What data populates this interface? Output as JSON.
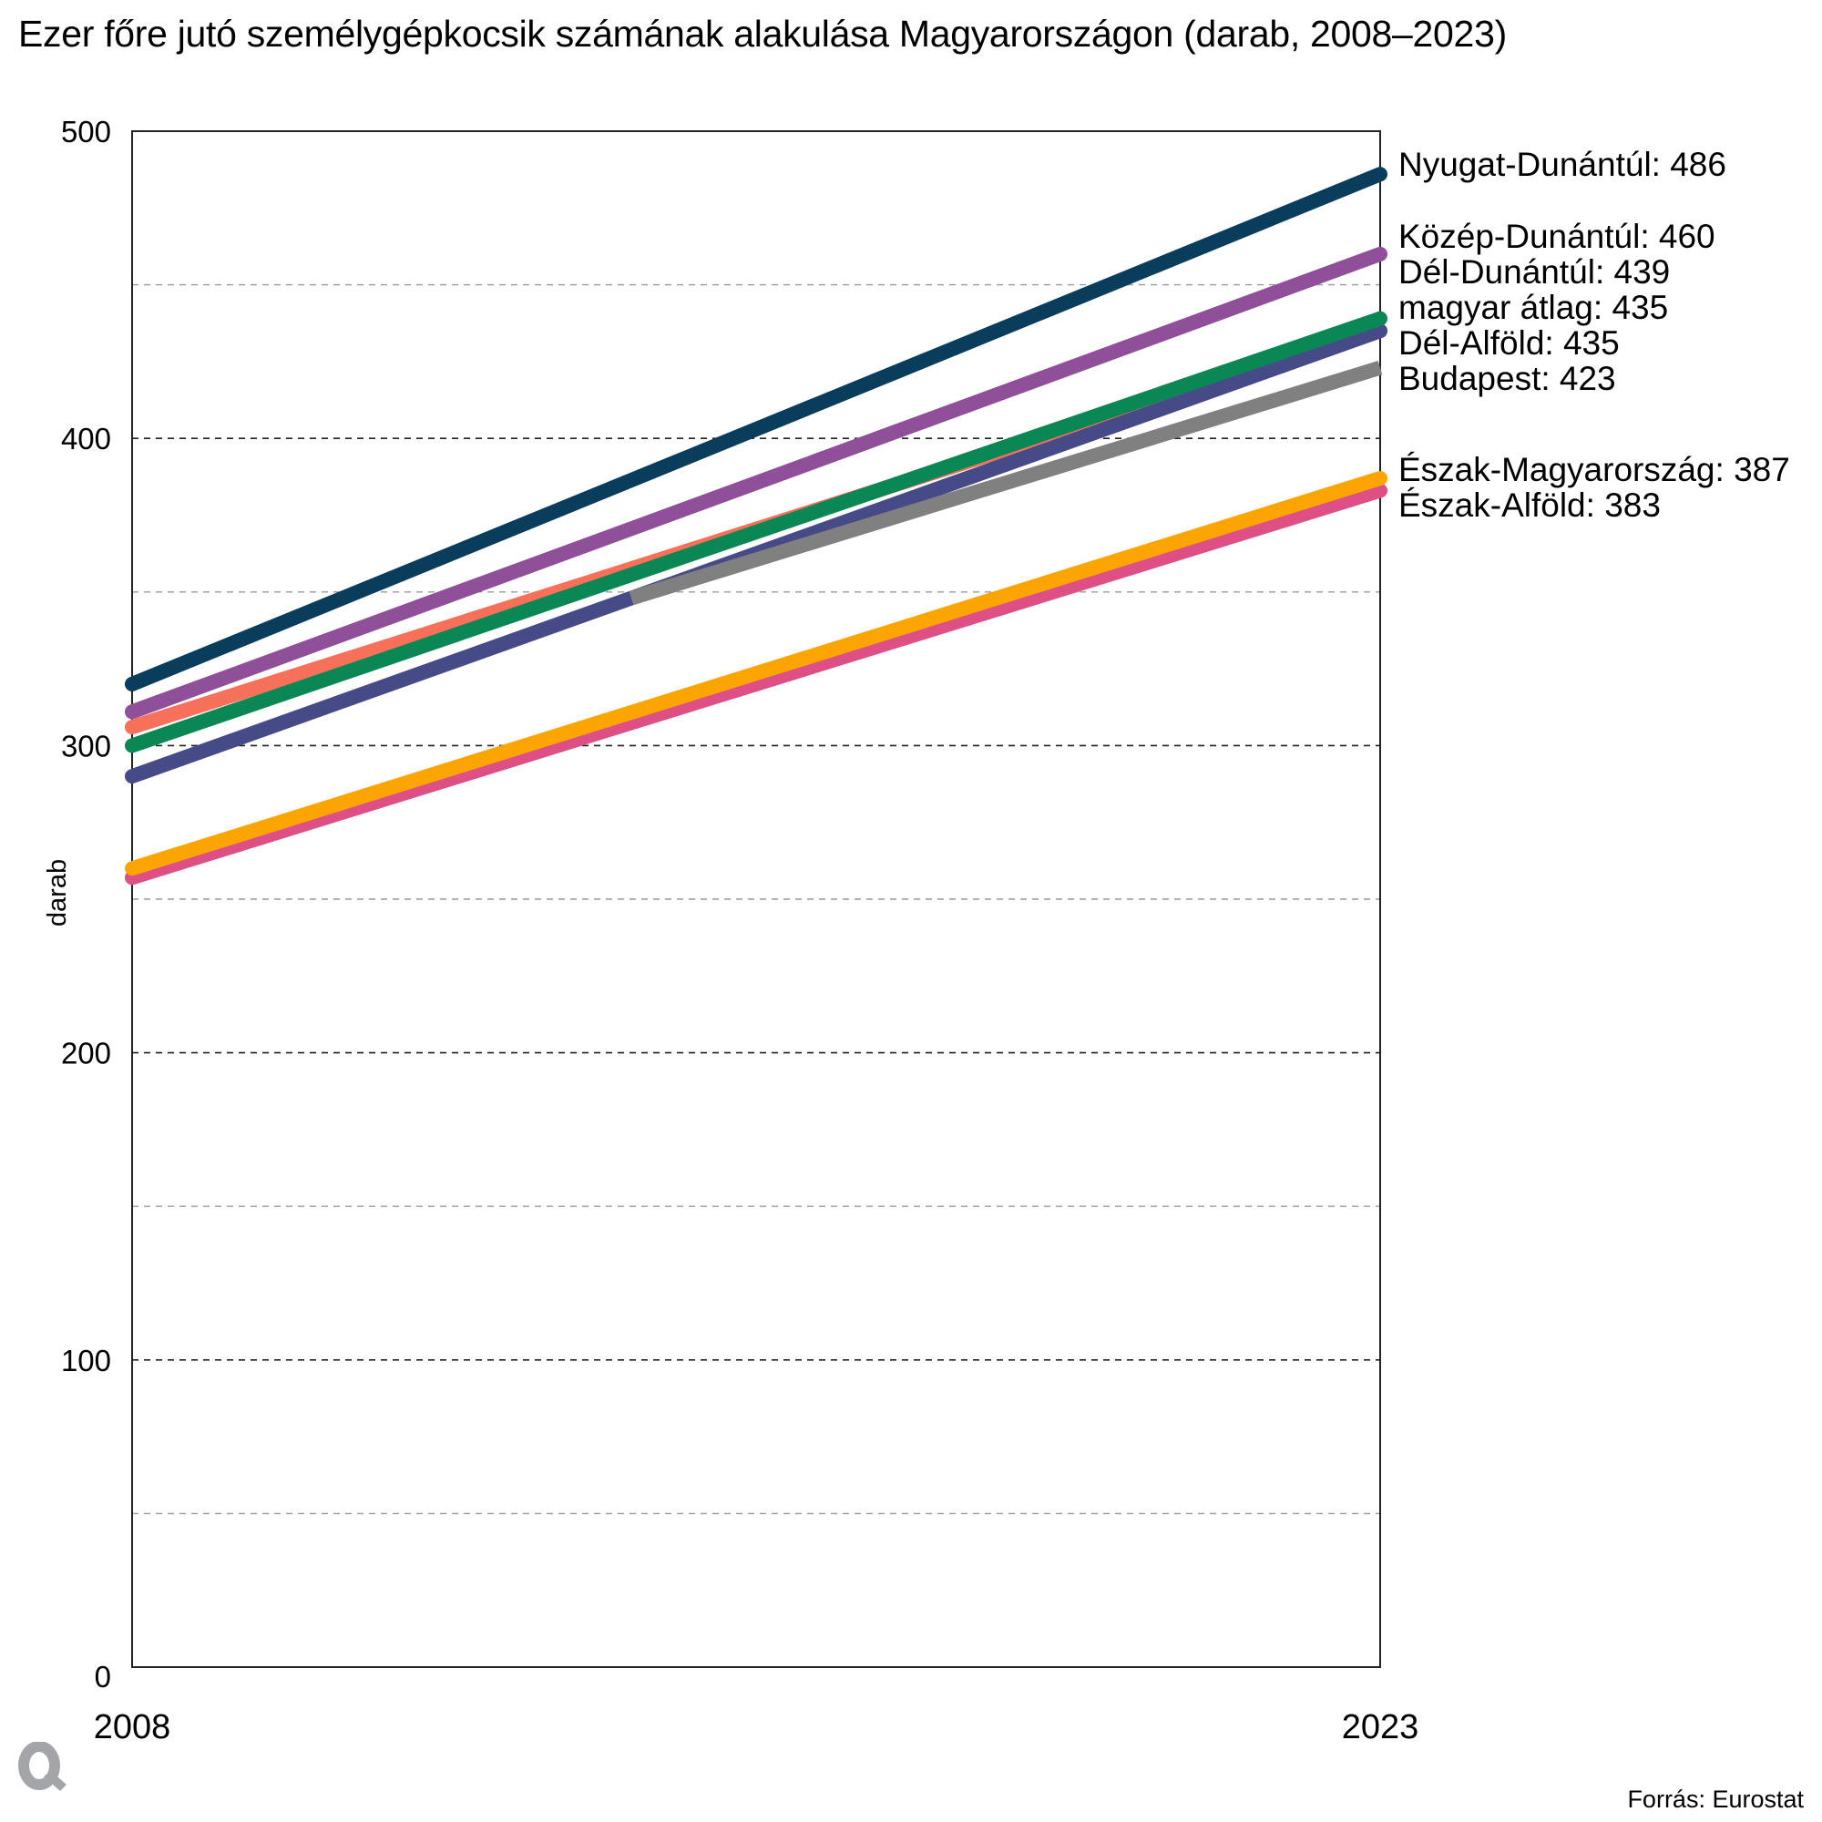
{
  "title": "Ezer főre jutó személygépkocsik számának alakulása Magyarországon (darab, 2008–2023)",
  "source": "Forrás: Eurostat",
  "logo": "Q",
  "chart_data": {
    "type": "line",
    "title": "Ezer főre jutó személygépkocsik számának alakulása Magyarországon (darab, 2008–2023)",
    "xlabel": "",
    "ylabel": "darab",
    "x": [
      2008,
      2023
    ],
    "xticks": [
      "2008",
      "2023"
    ],
    "ylim": [
      0,
      500
    ],
    "yticks": [
      0,
      100,
      200,
      300,
      400,
      500
    ],
    "ytick_labels": [
      "0",
      "100",
      "200",
      "300",
      "400",
      "500"
    ],
    "minor_gridlines": [
      50,
      150,
      250,
      350,
      450
    ],
    "grid": true,
    "legend": "direct labels at right end of lines",
    "series": [
      {
        "name": "Nyugat-Dunántúl",
        "color": "#0a3d5c",
        "points": [
          [
            2008,
            320
          ],
          [
            2023,
            486
          ]
        ],
        "label": "Nyugat-Dunántúl: 486"
      },
      {
        "name": "Közép-Dunántúl",
        "color": "#8f4f99",
        "points": [
          [
            2008,
            311
          ],
          [
            2023,
            460
          ]
        ],
        "label": "Közép-Dunántúl: 460"
      },
      {
        "name": "Dél-Alföld",
        "color": "#f7705a",
        "points": [
          [
            2008,
            306
          ],
          [
            2023,
            435
          ]
        ],
        "label": "Dél-Alföld: 435"
      },
      {
        "name": "magyar átlag",
        "color": "#464a87",
        "points": [
          [
            2008,
            290
          ],
          [
            2023,
            435
          ]
        ],
        "label": "magyar átlag: 435"
      },
      {
        "name": "Budapest",
        "color": "#808080",
        "points": [
          [
            2014,
            348
          ],
          [
            2023,
            423
          ]
        ],
        "label": "Budapest: 423"
      },
      {
        "name": "Dél-Dunántúl",
        "color": "#0a8755",
        "points": [
          [
            2008,
            300
          ],
          [
            2023,
            439
          ]
        ],
        "label": "Dél-Dunántúl: 439"
      },
      {
        "name": "Észak-Alföld",
        "color": "#de4f86",
        "points": [
          [
            2008,
            257
          ],
          [
            2023,
            383
          ]
        ],
        "label": "Észak-Alföld: 383"
      },
      {
        "name": "Észak-Magyarország",
        "color": "#fca500",
        "points": [
          [
            2008,
            260
          ],
          [
            2023,
            387
          ]
        ],
        "label": "Észak-Magyarország: 387"
      }
    ],
    "end_labels_order": [
      "Nyugat-Dunántúl: 486",
      "Közép-Dunántúl: 460",
      "Dél-Dunántúl: 439",
      "magyar átlag: 435",
      "Dél-Alföld: 435",
      "Budapest: 423",
      "Észak-Magyarország: 387",
      "Észak-Alföld: 383"
    ]
  }
}
